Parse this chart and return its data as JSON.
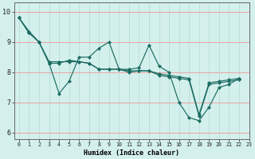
{
  "xlabel": "Humidex (Indice chaleur)",
  "xlim": [
    -0.5,
    22.5
  ],
  "ylim": [
    5.8,
    10.3
  ],
  "yticks": [
    6,
    7,
    8,
    9,
    10
  ],
  "xticks": [
    0,
    1,
    2,
    3,
    4,
    5,
    6,
    7,
    8,
    9,
    10,
    11,
    12,
    13,
    14,
    15,
    16,
    17,
    18,
    19,
    20,
    21,
    22,
    23
  ],
  "bg_color": "#d4f0ec",
  "line_color": "#1b6b62",
  "grid_color_h": "#e8aaaa",
  "grid_color_v": "#b8ddd8",
  "lines": [
    [
      9.8,
      9.3,
      9.0,
      8.3,
      7.3,
      7.7,
      8.5,
      8.5,
      8.8,
      9.0,
      8.1,
      8.1,
      8.15,
      8.9,
      8.2,
      8.0,
      7.0,
      6.5,
      6.4,
      6.85,
      7.5,
      7.6,
      7.8
    ],
    [
      9.8,
      9.3,
      9.0,
      8.35,
      8.35,
      8.35,
      8.35,
      8.3,
      8.1,
      8.1,
      8.1,
      8.0,
      8.05,
      8.05,
      7.95,
      7.9,
      7.85,
      7.8,
      6.6,
      7.65,
      7.7,
      7.75,
      7.8
    ],
    [
      9.8,
      9.35,
      9.0,
      8.3,
      8.3,
      8.4,
      8.35,
      8.3,
      8.1,
      8.1,
      8.1,
      8.05,
      8.05,
      8.05,
      7.9,
      7.85,
      7.8,
      7.75,
      6.55,
      7.6,
      7.65,
      7.7,
      7.75
    ]
  ]
}
